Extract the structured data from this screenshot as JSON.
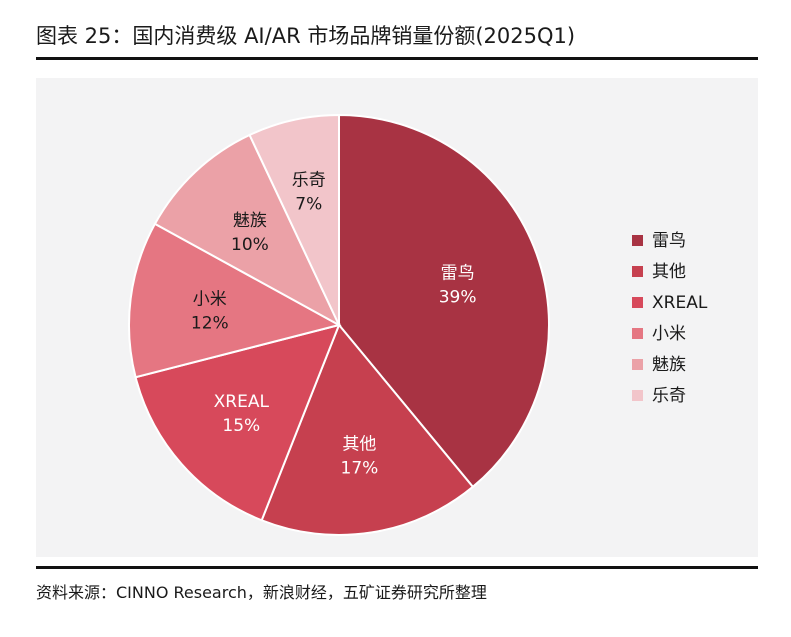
{
  "header": {
    "title": "图表 25：国内消费级 AI/AR 市场品牌销量份额(2025Q1)"
  },
  "footer": {
    "source": "资料来源：CINNO Research，新浪财经，五矿证券研究所整理"
  },
  "chart_data": {
    "type": "pie",
    "title": "图表 25：国内消费级 AI/AR 市场品牌销量份额(2025Q1)",
    "unit": "%",
    "legend_position": "right",
    "slices": [
      {
        "name": "雷鸟",
        "value": 39,
        "label": "39%",
        "color": "#a83343"
      },
      {
        "name": "其他",
        "value": 17,
        "label": "17%",
        "color": "#c6404f"
      },
      {
        "name": "XREAL",
        "value": 15,
        "label": "15%",
        "color": "#d7495b"
      },
      {
        "name": "小米",
        "value": 12,
        "label": "12%",
        "color": "#e57682"
      },
      {
        "name": "魅族",
        "value": 10,
        "label": "10%",
        "color": "#eba1a7"
      },
      {
        "name": "乐奇",
        "value": 7,
        "label": "7%",
        "color": "#f2c5ca"
      }
    ]
  }
}
